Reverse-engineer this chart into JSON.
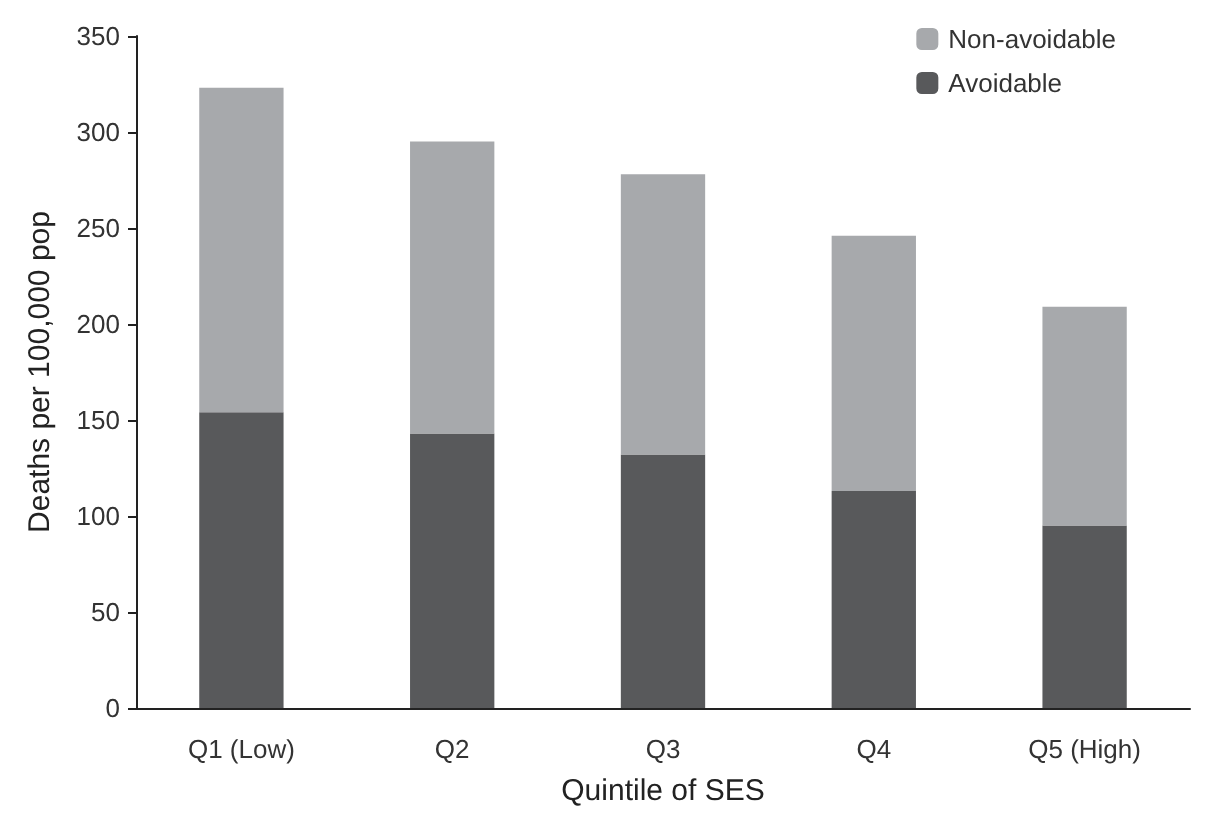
{
  "chart_data": {
    "type": "bar",
    "stacked": true,
    "xlabel": "Quintile of SES",
    "ylabel": "Deaths per 100,000 pop",
    "categories": [
      "Q1 (Low)",
      "Q2",
      "Q3",
      "Q4",
      "Q5 (High)"
    ],
    "series": [
      {
        "name": "Avoidable",
        "color": "#58595b",
        "values": [
          154,
          143,
          132,
          113,
          95
        ]
      },
      {
        "name": "Non-avoidable",
        "color": "#a7a9ac",
        "values": [
          169,
          152,
          146,
          133,
          114
        ]
      }
    ],
    "ylim": [
      0,
      350
    ],
    "yticks": [
      0,
      50,
      100,
      150,
      200,
      250,
      300,
      350
    ],
    "grid": false,
    "legend": "top right"
  }
}
